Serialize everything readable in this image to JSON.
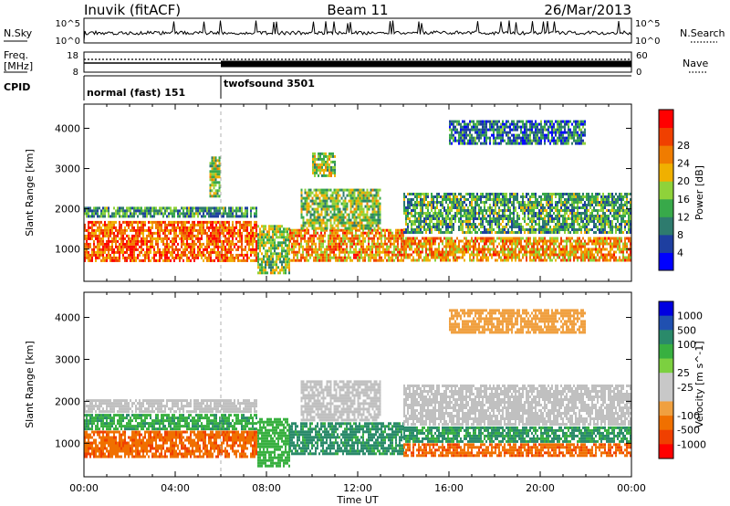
{
  "header": {
    "title": "Inuvik (fitACF)",
    "beam": "Beam 11",
    "date": "26/Mar/2013"
  },
  "panels": {
    "nsky": {
      "label": "N.Sky",
      "ticks": [
        "10^5",
        "10^0"
      ]
    },
    "nsearch": {
      "label": "N.Search",
      "ticks": [
        "10^5",
        "10^0"
      ]
    },
    "freq": {
      "label_line1": "Freq.",
      "label_line2": "[MHz]",
      "ticks": [
        "18",
        "8"
      ]
    },
    "nave": {
      "label": "Nave",
      "ticks": [
        "60",
        "0"
      ]
    },
    "cpid": {
      "label": "CPID",
      "modes": [
        {
          "name": "normal (fast) 151",
          "start_hour": 0,
          "end_hour": 6
        },
        {
          "name": "twofsound 3501",
          "start_hour": 6,
          "end_hour": 24
        }
      ]
    }
  },
  "colors": {
    "power_scale": [
      "#0000ff",
      "#1e3fa0",
      "#2e7b6e",
      "#38a94a",
      "#8fd23a",
      "#f0b000",
      "#f07c00",
      "#f04000",
      "#ff0000"
    ],
    "velocity_scale": [
      "#0000e0",
      "#2050b0",
      "#2a8a6a",
      "#38b040",
      "#7cd040",
      "#c8c8c8",
      "#c8c8c8",
      "#f0a040",
      "#f07000",
      "#f04000",
      "#ff0000"
    ],
    "ground_scatter": "#c0c0c0"
  },
  "chart_data": [
    {
      "type": "heatmap",
      "name": "power",
      "ylabel": "Slant Range [km]",
      "xlabel": "Time UT",
      "xlim_hours": [
        0,
        24
      ],
      "ylim_km": [
        200,
        4600
      ],
      "x_tick_labels": [
        "00:00",
        "04:00",
        "08:00",
        "12:00",
        "16:00",
        "20:00",
        "00:00"
      ],
      "y_tick_values": [
        1000,
        2000,
        3000,
        4000
      ],
      "colorbar": {
        "label": "Power [dB]",
        "range": [
          0,
          32
        ],
        "tick_labels": [
          "4",
          "8",
          "12",
          "16",
          "20",
          "24",
          "28"
        ]
      },
      "bands": [
        {
          "t": [
            0,
            7.6
          ],
          "range_km": [
            650,
            1700
          ],
          "value": 25
        },
        {
          "t": [
            0,
            7.6
          ],
          "range_km": [
            1750,
            2050
          ],
          "value": 11
        },
        {
          "t": [
            5.5,
            6
          ],
          "range_km": [
            2300,
            3300
          ],
          "value": 16
        },
        {
          "t": [
            7.6,
            9
          ],
          "range_km": [
            400,
            1600
          ],
          "value": 15
        },
        {
          "t": [
            9,
            14
          ],
          "range_km": [
            700,
            1500
          ],
          "value": 22
        },
        {
          "t": [
            9.5,
            13
          ],
          "range_km": [
            1500,
            2500
          ],
          "value": 15
        },
        {
          "t": [
            10,
            11
          ],
          "range_km": [
            2800,
            3400
          ],
          "value": 16
        },
        {
          "t": [
            14,
            24
          ],
          "range_km": [
            700,
            1300
          ],
          "value": 22
        },
        {
          "t": [
            14,
            24
          ],
          "range_km": [
            1400,
            2400
          ],
          "value": 12
        },
        {
          "t": [
            16,
            22
          ],
          "range_km": [
            3600,
            4200
          ],
          "value": 8
        }
      ]
    },
    {
      "type": "heatmap",
      "name": "velocity",
      "ylabel": "Slant Range [km]",
      "xlabel": "Time UT",
      "xlim_hours": [
        0,
        24
      ],
      "ylim_km": [
        200,
        4600
      ],
      "x_tick_labels": [
        "00:00",
        "04:00",
        "08:00",
        "12:00",
        "16:00",
        "20:00",
        "00:00"
      ],
      "y_tick_values": [
        1000,
        2000,
        3000,
        4000
      ],
      "colorbar": {
        "label": "Velocity [m s^-1]",
        "tick_labels": [
          "1000",
          "500",
          "100",
          "25",
          "-25",
          "-100",
          "-500",
          "-1000"
        ]
      },
      "bands": [
        {
          "t": [
            0,
            7.6
          ],
          "range_km": [
            650,
            1300
          ],
          "value": -400
        },
        {
          "t": [
            0,
            7.6
          ],
          "range_km": [
            1300,
            1700
          ],
          "value": 80
        },
        {
          "t": [
            0,
            7.6
          ],
          "range_km": [
            1750,
            2050
          ],
          "value": 0
        },
        {
          "t": [
            7.6,
            9
          ],
          "range_km": [
            400,
            1600
          ],
          "value": 60
        },
        {
          "t": [
            9,
            14
          ],
          "range_km": [
            700,
            1500
          ],
          "value": 150
        },
        {
          "t": [
            9.5,
            13
          ],
          "range_km": [
            1500,
            2500
          ],
          "value": 0
        },
        {
          "t": [
            14,
            24
          ],
          "range_km": [
            700,
            1000
          ],
          "value": -400
        },
        {
          "t": [
            14,
            24
          ],
          "range_km": [
            1000,
            1400
          ],
          "value": 120
        },
        {
          "t": [
            14,
            24
          ],
          "range_km": [
            1400,
            2400
          ],
          "value": 0
        },
        {
          "t": [
            16,
            22
          ],
          "range_km": [
            3600,
            4200
          ],
          "value": -60
        }
      ]
    }
  ]
}
